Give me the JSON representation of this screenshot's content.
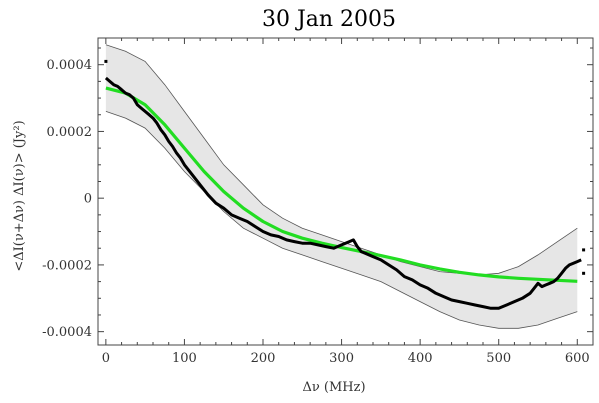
{
  "chart_data": {
    "type": "line",
    "title": "30 Jan 2005",
    "xlabel": "Δν (MHz)",
    "ylabel": "<ΔI(ν+Δν) ΔI(ν)> (Jy²)",
    "xlim": [
      -10,
      620
    ],
    "ylim": [
      -0.00044,
      0.00048
    ],
    "x_ticks": [
      0,
      100,
      200,
      300,
      400,
      500,
      600
    ],
    "x_tick_labels": [
      "0",
      "100",
      "200",
      "300",
      "400",
      "500",
      "600"
    ],
    "y_ticks": [
      0.0004,
      0.0002,
      0,
      -0.0002,
      -0.0004
    ],
    "y_tick_labels": [
      "0.0004",
      "0.0002",
      "0",
      "-0.0002",
      "-0.0004"
    ],
    "grid": false,
    "colors": {
      "band_fill": "#e6e6e6",
      "band_edge": "#555555",
      "data": "#000000",
      "fit": "#22dd22"
    },
    "series": [
      {
        "role": "envelope",
        "x": [
          0,
          25,
          50,
          75,
          100,
          125,
          150,
          175,
          200,
          225,
          250,
          275,
          300,
          325,
          350,
          375,
          400,
          425,
          450,
          475,
          500,
          525,
          550,
          575,
          600
        ],
        "upper": [
          0.00046,
          0.00044,
          0.00041,
          0.00034,
          0.00026,
          0.00018,
          0.0001,
          4e-05,
          -2e-05,
          -6e-05,
          -9e-05,
          -0.00011,
          -0.00013,
          -0.00015,
          -0.00017,
          -0.00019,
          -0.000205,
          -0.00022,
          -0.000225,
          -0.00023,
          -0.000225,
          -0.000205,
          -0.00017,
          -0.00013,
          -9e-05
        ],
        "lower": [
          0.00026,
          0.00024,
          0.00021,
          0.00015,
          8e-05,
          2e-05,
          -4e-05,
          -9e-05,
          -0.00012,
          -0.00015,
          -0.00017,
          -0.00019,
          -0.00021,
          -0.00023,
          -0.00025,
          -0.00028,
          -0.00031,
          -0.00034,
          -0.000365,
          -0.00038,
          -0.00039,
          -0.00039,
          -0.00038,
          -0.00036,
          -0.00034
        ]
      },
      {
        "role": "model",
        "x": [
          0,
          25,
          50,
          75,
          100,
          125,
          150,
          175,
          200,
          225,
          250,
          275,
          300,
          325,
          350,
          375,
          400,
          425,
          450,
          475,
          500,
          525,
          550,
          575,
          600
        ],
        "values": [
          0.00033,
          0.000315,
          0.00028,
          0.00022,
          0.00015,
          8e-05,
          2e-05,
          -3e-05,
          -7e-05,
          -0.0001,
          -0.00012,
          -0.000135,
          -0.000148,
          -0.00016,
          -0.000172,
          -0.000185,
          -0.0002,
          -0.000212,
          -0.000222,
          -0.00023,
          -0.000236,
          -0.00024,
          -0.000243,
          -0.000246,
          -0.000249
        ]
      },
      {
        "role": "measured",
        "x": [
          0,
          5,
          10,
          15,
          20,
          25,
          30,
          35,
          40,
          45,
          50,
          55,
          60,
          65,
          70,
          75,
          80,
          85,
          90,
          95,
          100,
          110,
          120,
          130,
          140,
          150,
          160,
          170,
          180,
          190,
          200,
          210,
          220,
          230,
          240,
          250,
          260,
          270,
          280,
          290,
          300,
          305,
          310,
          315,
          320,
          325,
          330,
          340,
          350,
          360,
          370,
          380,
          390,
          400,
          410,
          420,
          430,
          440,
          450,
          460,
          470,
          480,
          490,
          500,
          510,
          520,
          530,
          540,
          545,
          550,
          555,
          560,
          565,
          570,
          575,
          580,
          585,
          590,
          595,
          600,
          605
        ],
        "values": [
          0.00036,
          0.00035,
          0.00034,
          0.000335,
          0.000325,
          0.000315,
          0.00031,
          0.0003,
          0.00028,
          0.00027,
          0.00026,
          0.00025,
          0.00024,
          0.000225,
          0.000205,
          0.00019,
          0.00017,
          0.000155,
          0.000135,
          0.00012,
          0.0001,
          7e-05,
          4e-05,
          1e-05,
          -1.5e-05,
          -3e-05,
          -5e-05,
          -6e-05,
          -7e-05,
          -8.5e-05,
          -0.0001,
          -0.00011,
          -0.000115,
          -0.000125,
          -0.00013,
          -0.000135,
          -0.000135,
          -0.00014,
          -0.000145,
          -0.00015,
          -0.00014,
          -0.000135,
          -0.00013,
          -0.000125,
          -0.000145,
          -0.00016,
          -0.000165,
          -0.000175,
          -0.000185,
          -0.0002,
          -0.000215,
          -0.000235,
          -0.000245,
          -0.00026,
          -0.00027,
          -0.000285,
          -0.000295,
          -0.000305,
          -0.00031,
          -0.000315,
          -0.00032,
          -0.000325,
          -0.00033,
          -0.00033,
          -0.00032,
          -0.00031,
          -0.0003,
          -0.000285,
          -0.00027,
          -0.000255,
          -0.000265,
          -0.00026,
          -0.000255,
          -0.00025,
          -0.00024,
          -0.000225,
          -0.00021,
          -0.0002,
          -0.000195,
          -0.00019,
          -0.000185
        ],
        "outliers": [
          {
            "x": 0,
            "y": 0.00041
          },
          {
            "x": 608,
            "y": -0.000155
          },
          {
            "x": 608,
            "y": -0.000225
          }
        ]
      }
    ]
  }
}
